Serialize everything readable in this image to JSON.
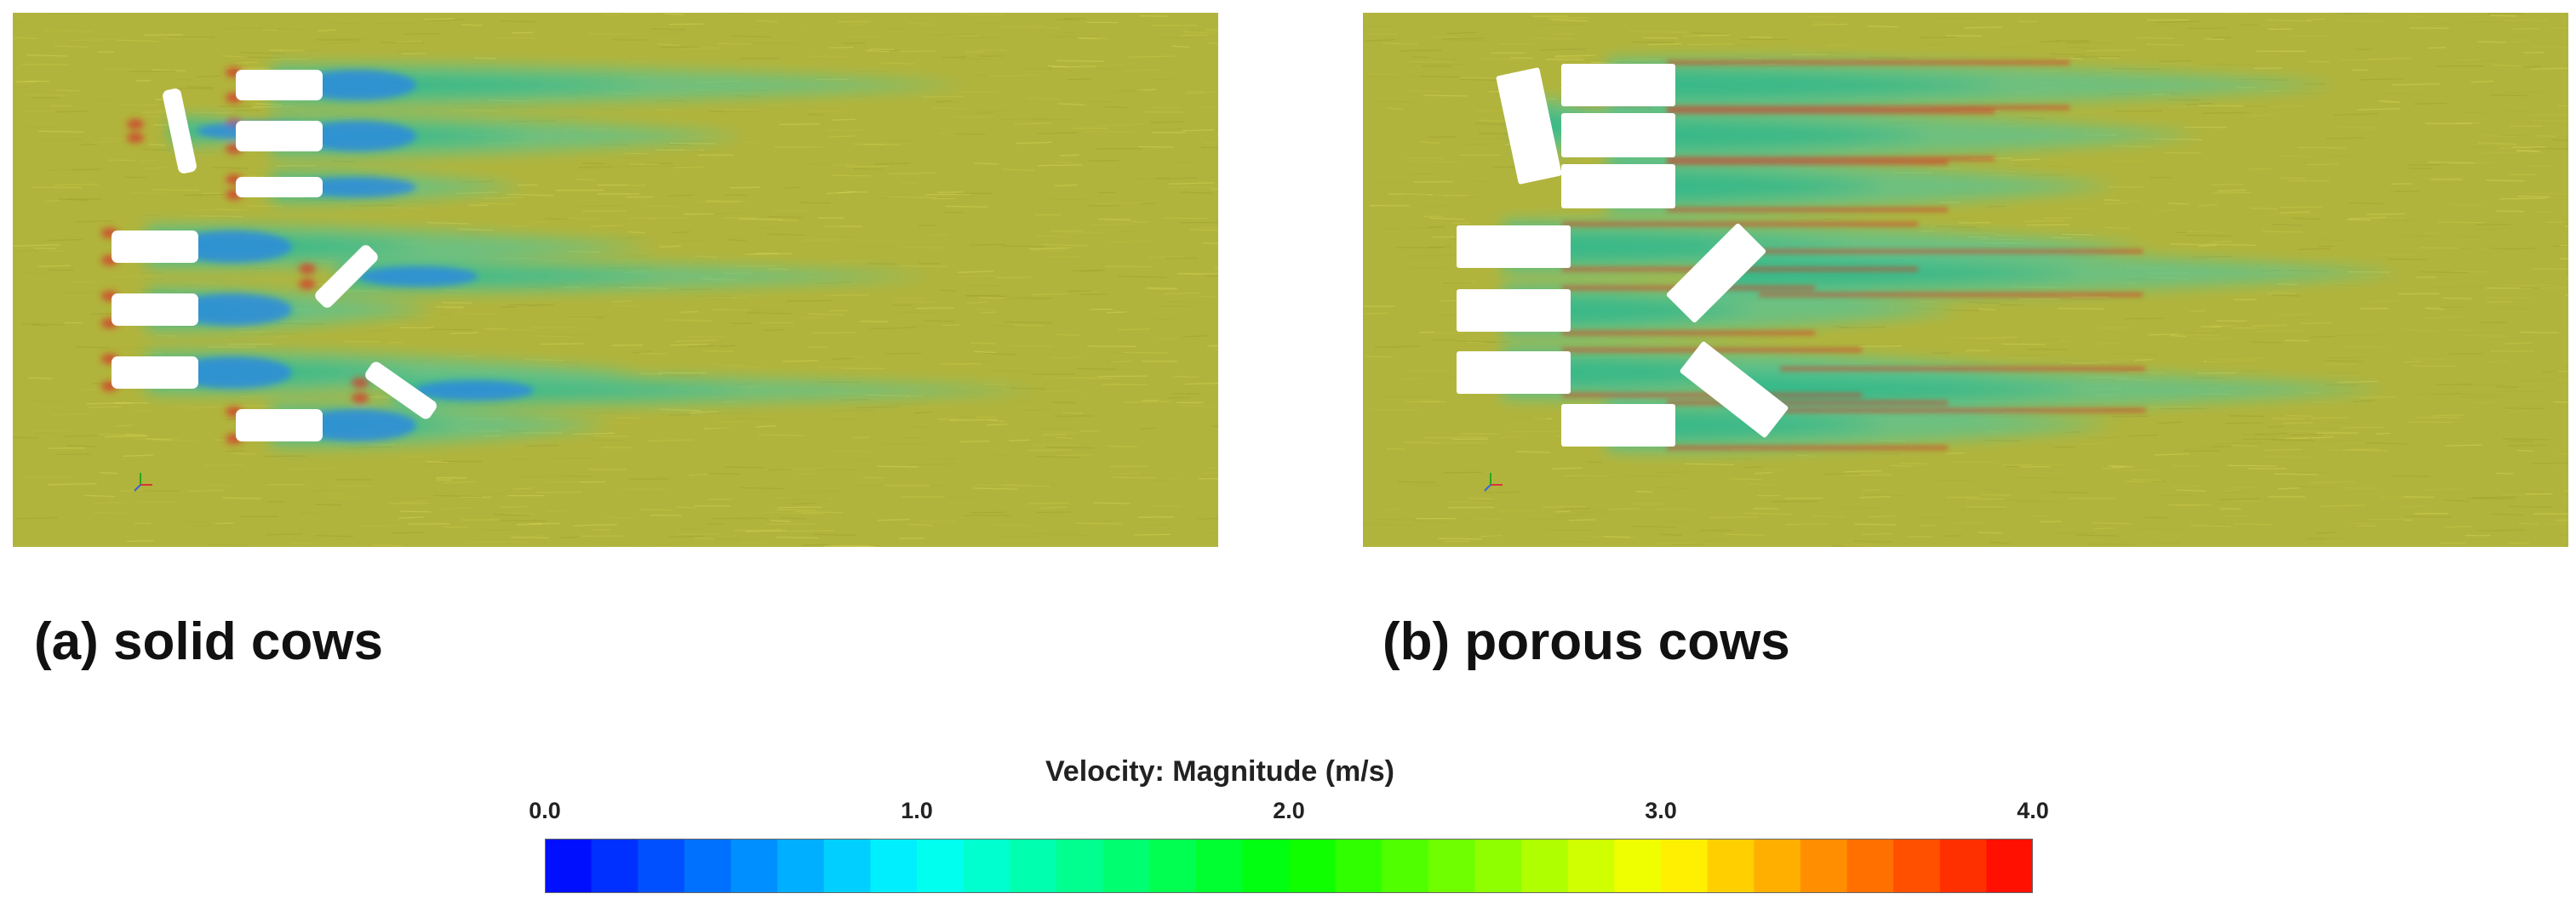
{
  "panels": [
    {
      "id": "a",
      "label": "(a) solid cows",
      "type": "solid",
      "axis_triad_colors": [
        "#22aa22",
        "#dd3333",
        "#3366dd"
      ]
    },
    {
      "id": "b",
      "label": "(b) porous cows",
      "type": "porous",
      "axis_triad_colors": [
        "#22aa22",
        "#dd3333",
        "#3366dd"
      ]
    }
  ],
  "colorbar": {
    "title": "Velocity: Magnitude (m/s)",
    "min": 0.0,
    "max": 4.0,
    "tick_labels": [
      "0.0",
      "1.0",
      "2.0",
      "3.0",
      "4.0"
    ],
    "tick_values": [
      0.0,
      1.0,
      2.0,
      3.0,
      4.0
    ],
    "segments": 32,
    "colors": [
      "#0000ff",
      "#00ffff",
      "#00ff00",
      "#ffff00",
      "#ff0000"
    ]
  },
  "field_colors": {
    "background": "#b1b43c",
    "wake_mid": "#5fc38f",
    "wake_core": "#2fb88a",
    "near_body": "#2a86e8",
    "stagnation": "#d23b2a"
  }
}
